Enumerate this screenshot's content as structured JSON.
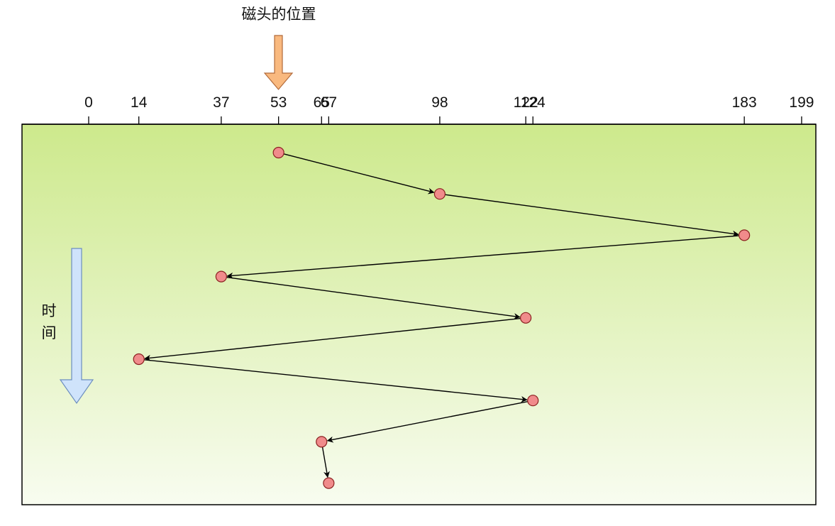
{
  "head_label": "磁头的位置",
  "time_label": "时间",
  "axis": {
    "min": 0,
    "max": 199,
    "ticks": [
      0,
      14,
      37,
      53,
      65,
      67,
      98,
      122,
      124,
      183,
      199
    ]
  },
  "visit_order": [
    53,
    98,
    183,
    37,
    122,
    14,
    124,
    65,
    67
  ],
  "colors": {
    "panel_top": "#cde98c",
    "panel_bottom": "#f8fcf0",
    "point_fill": "#f08b8b",
    "point_stroke": "#8b2020",
    "head_arrow_fill": "#f9b97f",
    "head_arrow_stroke": "#b26a3a",
    "time_arrow_fill": "#cfe3fb",
    "time_arrow_stroke": "#6c8ebf"
  }
}
